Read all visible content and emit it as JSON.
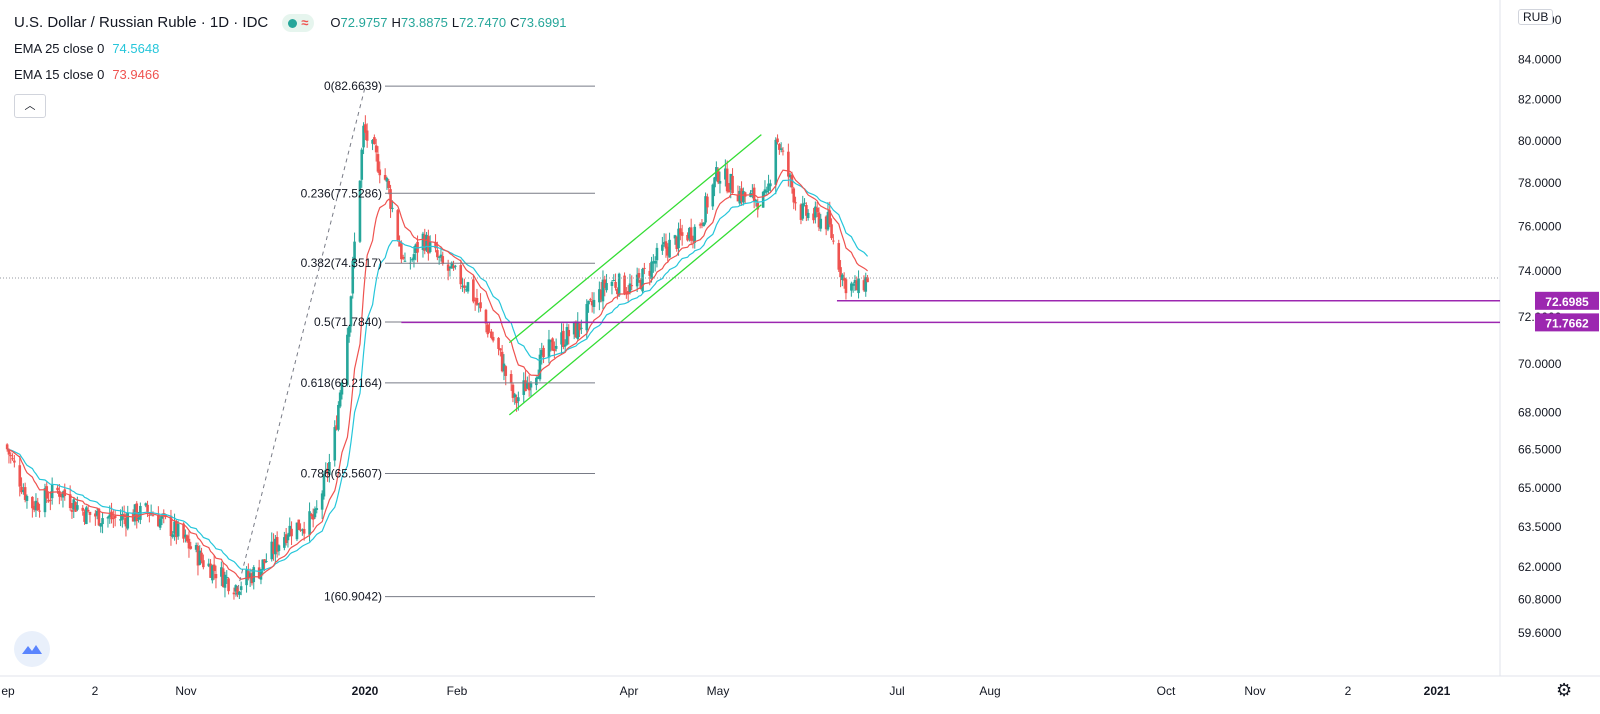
{
  "header": {
    "title": "U.S. Dollar / Russian Ruble · 1D · IDC",
    "ohlc": [
      {
        "label": "O",
        "value": "72.9757"
      },
      {
        "label": "H",
        "value": "73.8875"
      },
      {
        "label": "L",
        "value": "72.7470"
      },
      {
        "label": "C",
        "value": "73.6991"
      }
    ],
    "indicators": [
      {
        "name": "EMA 25 close 0",
        "value": "74.5648",
        "color": "#26c6da"
      },
      {
        "name": "EMA 15 close 0",
        "value": "73.9466",
        "color": "#ef5350"
      }
    ],
    "collapse_icon": "chevron-up-icon",
    "live_icon": "dot-icon",
    "wave_icon": "wave-icon"
  },
  "currency_label": "RUB",
  "colors": {
    "up": "#26a69a",
    "down": "#ef5350",
    "ema25": "#26c6da",
    "ema15": "#ef5350",
    "channel": "#33dd33",
    "level": "#9c27b0"
  },
  "chart_data": {
    "type": "candlestick",
    "title": "U.S. Dollar / Russian Ruble · 1D · IDC",
    "y_scale": "log",
    "y_axis_ticks": [
      "86.0000",
      "84.0000",
      "82.0000",
      "80.0000",
      "78.0000",
      "76.0000",
      "74.0000",
      "72.0000",
      "70.0000",
      "68.0000",
      "66.5000",
      "65.0000",
      "63.5000",
      "62.0000",
      "60.8000",
      "59.6000"
    ],
    "x_axis_ticks": [
      "ep",
      "2",
      "Nov",
      "2020",
      "Feb",
      "Apr",
      "May",
      "Jul",
      "Aug",
      "Oct",
      "Nov",
      "2",
      "2021"
    ],
    "price_anchors": [
      {
        "date": "2019-09-01",
        "price": 66.7
      },
      {
        "date": "2019-09-15",
        "price": 64.3
      },
      {
        "date": "2019-10-01",
        "price": 64.9
      },
      {
        "date": "2019-10-16",
        "price": 64.0
      },
      {
        "date": "2019-11-01",
        "price": 63.8
      },
      {
        "date": "2019-11-20",
        "price": 64.1
      },
      {
        "date": "2019-12-05",
        "price": 63.3
      },
      {
        "date": "2019-12-20",
        "price": 62.2
      },
      {
        "date": "2020-01-07",
        "price": 61.3
      },
      {
        "date": "2020-01-20",
        "price": 61.9
      },
      {
        "date": "2020-02-05",
        "price": 63.4
      },
      {
        "date": "2020-02-20",
        "price": 63.8
      },
      {
        "date": "2020-03-01",
        "price": 66.5
      },
      {
        "date": "2020-03-10",
        "price": 72.0
      },
      {
        "date": "2020-03-18",
        "price": 80.5
      },
      {
        "date": "2020-03-31",
        "price": 78.0
      },
      {
        "date": "2020-04-10",
        "price": 74.0
      },
      {
        "date": "2020-04-20",
        "price": 75.5
      },
      {
        "date": "2020-05-01",
        "price": 74.2
      },
      {
        "date": "2020-05-15",
        "price": 73.4
      },
      {
        "date": "2020-06-01",
        "price": 70.5
      },
      {
        "date": "2020-06-10",
        "price": 68.4
      },
      {
        "date": "2020-06-20",
        "price": 69.6
      },
      {
        "date": "2020-07-01",
        "price": 70.8
      },
      {
        "date": "2020-07-15",
        "price": 71.5
      },
      {
        "date": "2020-08-01",
        "price": 73.6
      },
      {
        "date": "2020-08-15",
        "price": 73.2
      },
      {
        "date": "2020-09-01",
        "price": 75.0
      },
      {
        "date": "2020-09-20",
        "price": 76.0
      },
      {
        "date": "2020-10-01",
        "price": 78.5
      },
      {
        "date": "2020-10-15",
        "price": 77.4
      },
      {
        "date": "2020-10-28",
        "price": 77.2
      },
      {
        "date": "2020-11-02",
        "price": 80.3
      },
      {
        "date": "2020-11-15",
        "price": 76.7
      },
      {
        "date": "2020-12-01",
        "price": 76.2
      },
      {
        "date": "2020-12-10",
        "price": 73.5
      },
      {
        "date": "2020-12-18",
        "price": 73.2
      },
      {
        "date": "2020-12-23",
        "price": 73.7
      }
    ],
    "fibonacci": {
      "from": {
        "date": "2020-01-07",
        "price": 60.9042
      },
      "to": {
        "date": "2020-03-19",
        "price": 82.6639
      },
      "levels": [
        {
          "label": "0(82.6639)",
          "price": 82.6639
        },
        {
          "label": "0.236(77.5286)",
          "price": 77.5286
        },
        {
          "label": "0.382(74.3517)",
          "price": 74.3517
        },
        {
          "label": "0.5(71.7840)",
          "price": 71.784
        },
        {
          "label": "0.618(69.2164)",
          "price": 69.2164
        },
        {
          "label": "0.786(65.5607)",
          "price": 65.5607
        },
        {
          "label": "1(60.9042)",
          "price": 60.9042
        }
      ]
    },
    "channel": {
      "upper": [
        {
          "date": "2020-06-07",
          "price": 70.9
        },
        {
          "date": "2020-10-25",
          "price": 80.3
        }
      ],
      "lower": [
        {
          "date": "2020-06-07",
          "price": 67.9
        },
        {
          "date": "2020-10-25",
          "price": 77.0
        }
      ]
    },
    "horizontal_levels": [
      {
        "label": "72.6985",
        "price": 72.6985,
        "from": "2020-12-06"
      },
      {
        "label": "71.7662",
        "price": 71.7662,
        "from": "2020-04-08"
      }
    ],
    "last_price": 73.6991
  }
}
